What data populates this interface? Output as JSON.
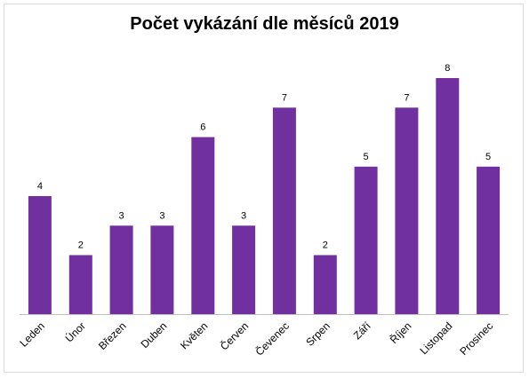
{
  "chart_data": {
    "type": "bar",
    "title": "Počet vykázání dle měsíců 2019",
    "xlabel": "",
    "ylabel": "",
    "categories": [
      "Leden",
      "Únor",
      "Březen",
      "Duben",
      "Květen",
      "Červen",
      "Čevenec",
      "Srpen",
      "Září",
      "Říjen",
      "Listopad",
      "Prosinec"
    ],
    "values": [
      4,
      2,
      3,
      3,
      6,
      3,
      7,
      2,
      5,
      7,
      8,
      5
    ],
    "ylim": [
      0,
      8
    ],
    "grid": false,
    "legend": "none",
    "data_labels": true,
    "bar_color": "#7030a0"
  }
}
